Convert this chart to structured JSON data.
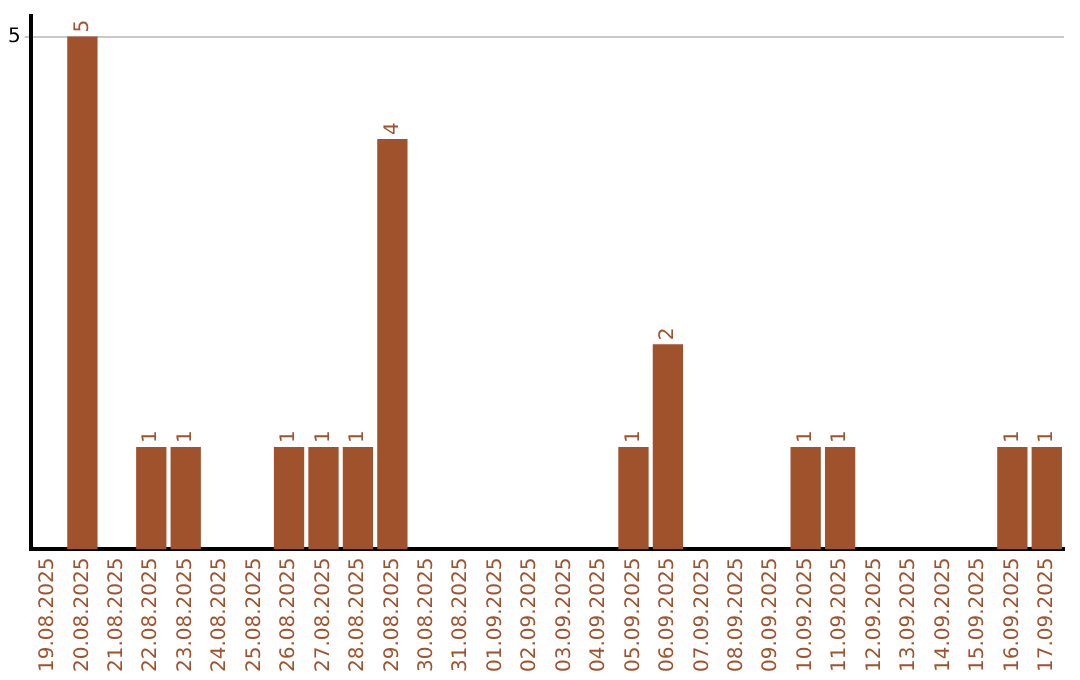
{
  "chart_data": {
    "type": "bar",
    "categories": [
      "19.08.2025",
      "20.08.2025",
      "21.08.2025",
      "22.08.2025",
      "23.08.2025",
      "24.08.2025",
      "25.08.2025",
      "26.08.2025",
      "27.08.2025",
      "28.08.2025",
      "29.08.2025",
      "30.08.2025",
      "31.08.2025",
      "01.09.2025",
      "02.09.2025",
      "03.09.2025",
      "04.09.2025",
      "05.09.2025",
      "06.09.2025",
      "07.09.2025",
      "08.09.2025",
      "09.09.2025",
      "10.09.2025",
      "11.09.2025",
      "12.09.2025",
      "13.09.2025",
      "14.09.2025",
      "15.09.2025",
      "16.09.2025",
      "17.09.2025"
    ],
    "values": [
      0,
      5,
      0,
      1,
      1,
      0,
      0,
      1,
      1,
      1,
      4,
      0,
      0,
      0,
      0,
      0,
      0,
      1,
      2,
      0,
      0,
      0,
      1,
      1,
      0,
      0,
      0,
      0,
      1,
      1
    ],
    "value_labels": [
      null,
      "5",
      null,
      "1",
      "1",
      null,
      null,
      "1",
      "1",
      "1",
      "4",
      null,
      null,
      null,
      null,
      null,
      null,
      "1",
      "2",
      null,
      null,
      null,
      "1",
      "1",
      null,
      null,
      null,
      null,
      "1",
      "1"
    ],
    "color": "#a0522d",
    "ylim": [
      0,
      5.2
    ],
    "yticks": [
      5
    ],
    "grid": "y",
    "legend": false
  }
}
